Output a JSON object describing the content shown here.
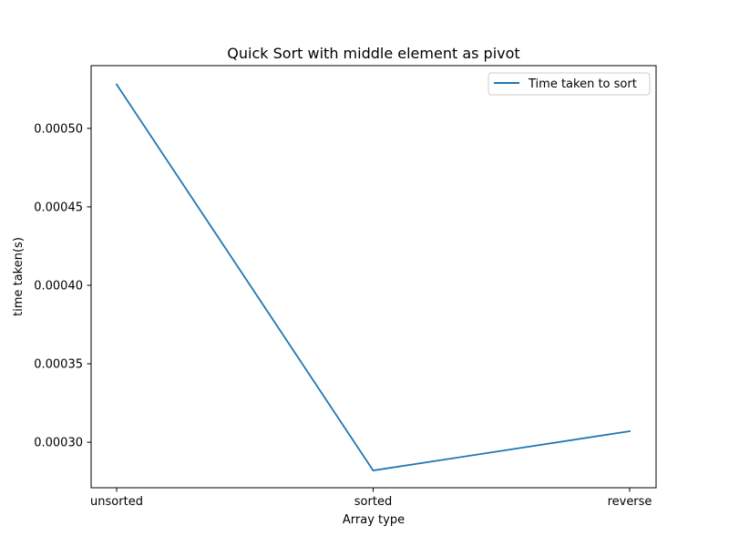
{
  "chart_data": {
    "type": "line",
    "title": "Quick Sort with middle element as pivot",
    "xlabel": "Array type",
    "ylabel": "time taken(s)",
    "categories": [
      "unsorted",
      "sorted",
      "reverse"
    ],
    "series": [
      {
        "name": "Time taken to sort",
        "values": [
          0.000528,
          0.000282,
          0.000307
        ],
        "color": "#1f77b4"
      }
    ],
    "ylim": [
      0.000271,
      0.00054
    ],
    "yticks": [
      0.0003,
      0.00035,
      0.0004,
      0.00045,
      0.0005
    ],
    "ytick_labels": [
      "0.00030",
      "0.00035",
      "0.00040",
      "0.00045",
      "0.00050"
    ],
    "grid": false,
    "legend_position": "upper right"
  }
}
